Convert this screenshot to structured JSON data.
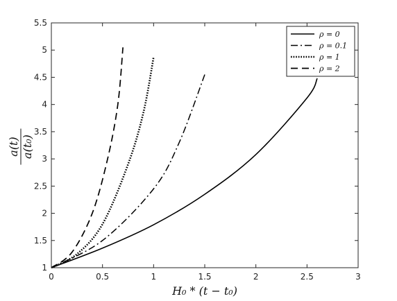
{
  "chart_data": {
    "type": "line",
    "title": "",
    "xlabel": "H₀ * (t − t₀)",
    "ylabel_numerator": "a(t)",
    "ylabel_denominator": "a(t₀)",
    "xlim": [
      0,
      3
    ],
    "ylim": [
      1,
      5.5
    ],
    "xticks": [
      "0",
      "0.5",
      "1",
      "1.5",
      "2",
      "2.5",
      "3"
    ],
    "xtick_values": [
      0,
      0.5,
      1,
      1.5,
      2,
      2.5,
      3
    ],
    "yticks": [
      "1",
      "1.5",
      "2",
      "2.5",
      "3",
      "3.5",
      "4",
      "4.5",
      "5",
      "5.5"
    ],
    "ytick_values": [
      1,
      1.5,
      2,
      2.5,
      3,
      3.5,
      4,
      4.5,
      5,
      5.5
    ],
    "grid": false,
    "legend_position": "top-right",
    "series": [
      {
        "name": "ρ = 0",
        "style": "solid",
        "color": "#000000",
        "x": [
          0,
          0.5,
          1,
          1.5,
          2,
          2.5,
          2.6
        ],
        "y": [
          1,
          1.36,
          1.79,
          2.35,
          3.08,
          4.12,
          4.48
        ]
      },
      {
        "name": "ρ = 0.1",
        "style": "dashdot",
        "color": "#000000",
        "x": [
          0,
          0.5,
          1,
          1.25,
          1.5
        ],
        "y": [
          1,
          1.5,
          2.45,
          3.3,
          4.55
        ]
      },
      {
        "name": "ρ = 1",
        "style": "dotted",
        "color": "#000000",
        "x": [
          0,
          0.25,
          0.5,
          0.75,
          0.9,
          1.0
        ],
        "y": [
          1,
          1.25,
          1.8,
          2.9,
          3.85,
          4.87
        ]
      },
      {
        "name": "ρ = 2",
        "style": "dashed",
        "color": "#000000",
        "x": [
          0,
          0.2,
          0.4,
          0.55,
          0.65,
          0.7
        ],
        "y": [
          1,
          1.28,
          2.0,
          3.0,
          4.0,
          5.05
        ]
      }
    ]
  }
}
